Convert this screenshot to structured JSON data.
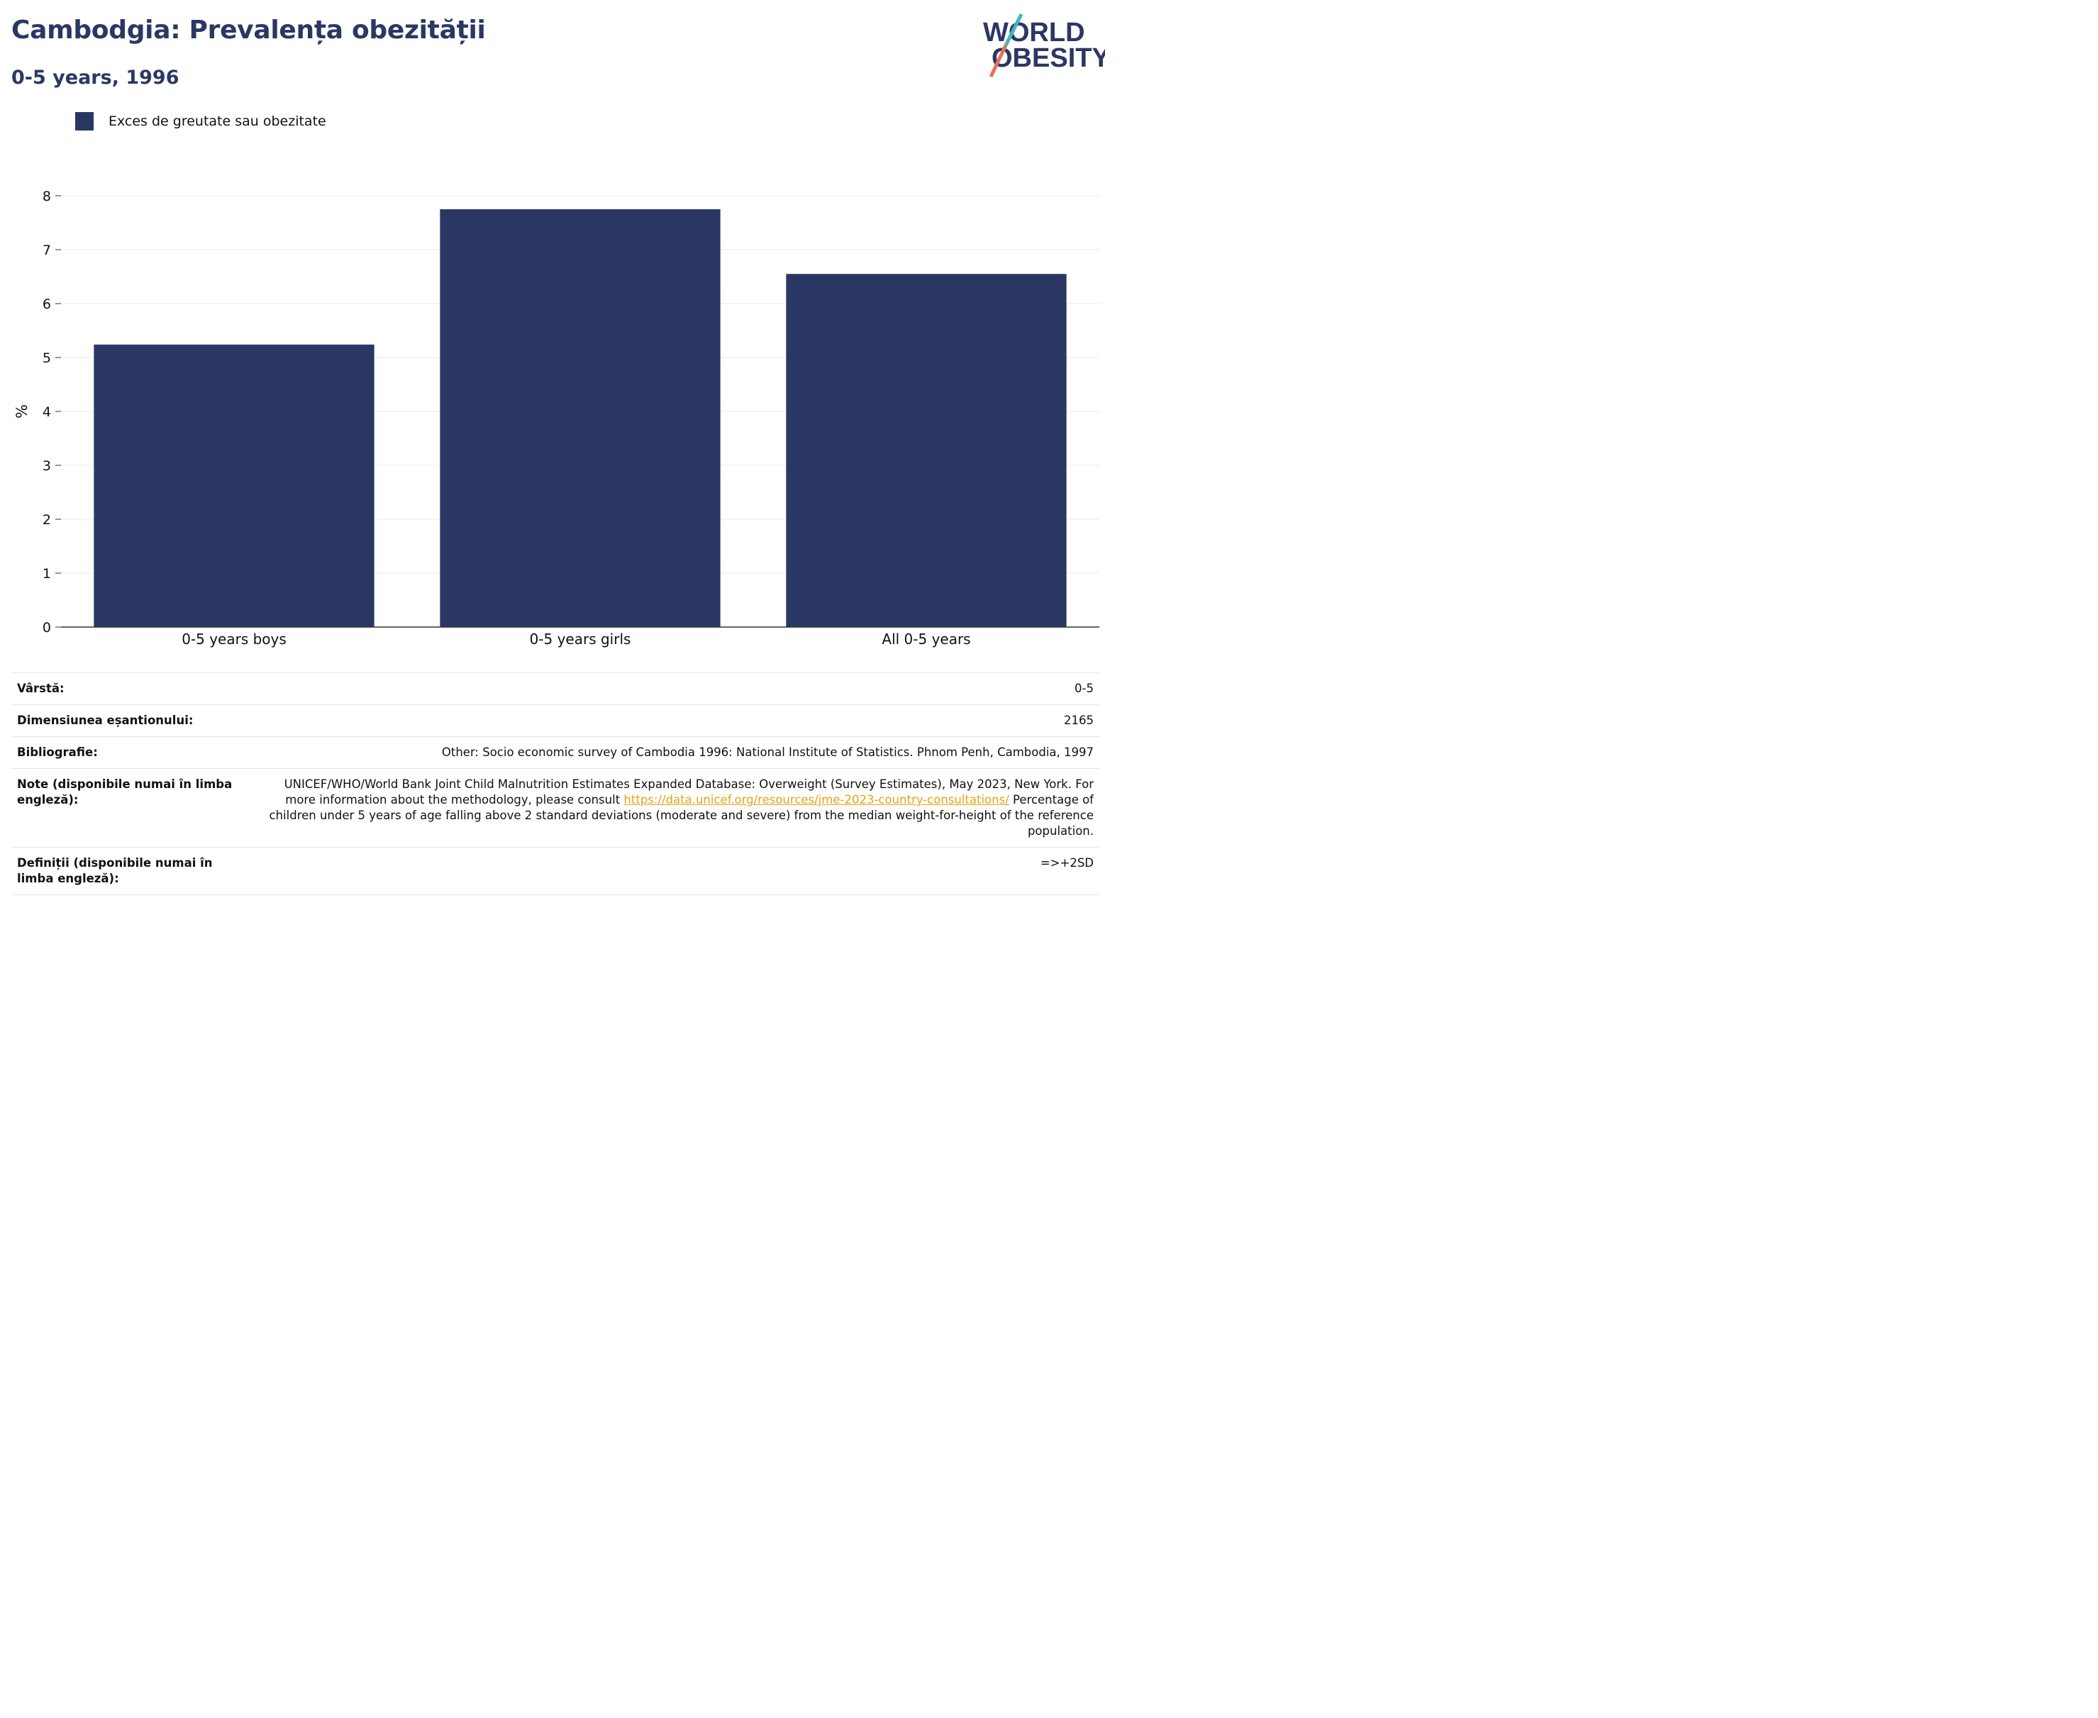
{
  "header": {
    "title": "Cambodgia: Prevalența obezității",
    "subtitle": "0-5 years, 1996"
  },
  "logo": {
    "line1": "WORLD",
    "line2": "OBESITY",
    "accent_colors": [
      "#3fb8b8",
      "#e8705a"
    ]
  },
  "legend": {
    "label": "Exces de greutate sau obezitate",
    "color": "#2b3763"
  },
  "chart_data": {
    "type": "bar",
    "categories": [
      "0-5 years boys",
      "0-5 years girls",
      "All 0-5 years"
    ],
    "series": [
      {
        "name": "Exces de greutate sau obezitate",
        "values": [
          5.24,
          7.75,
          6.55
        ],
        "color": "#2b3763"
      }
    ],
    "ylabel": "%",
    "ylim": [
      0,
      8
    ],
    "yticks": [
      0,
      1,
      2,
      3,
      4,
      5,
      6,
      7,
      8
    ],
    "grid": true,
    "legend_position": "top-left"
  },
  "info": {
    "rows": [
      {
        "key": "Vârstă:",
        "value": "0-5"
      },
      {
        "key": "Dimensiunea eșantionului:",
        "value": "2165"
      },
      {
        "key": "Bibliografie:",
        "value": "Other: Socio economic survey of Cambodia 1996: National Institute of Statistics. Phnom Penh, Cambodia, 1997"
      },
      {
        "key": "Note (disponibile numai în limba engleză):",
        "value_pre": "UNICEF/WHO/World Bank Joint Child Malnutrition Estimates Expanded Database: Overweight (Survey Estimates), May 2023, New York. For more information about the methodology, please consult ",
        "link": "https://data.unicef.org/resources/jme-2023-country-consultations/",
        "value_post": " Percentage of children under 5 years of age falling above 2 standard deviations (moderate and severe) from the median weight-for-height of the reference population."
      },
      {
        "key": "Definiții (disponibile numai în limba engleză):",
        "value": "=>+2SD"
      }
    ]
  }
}
